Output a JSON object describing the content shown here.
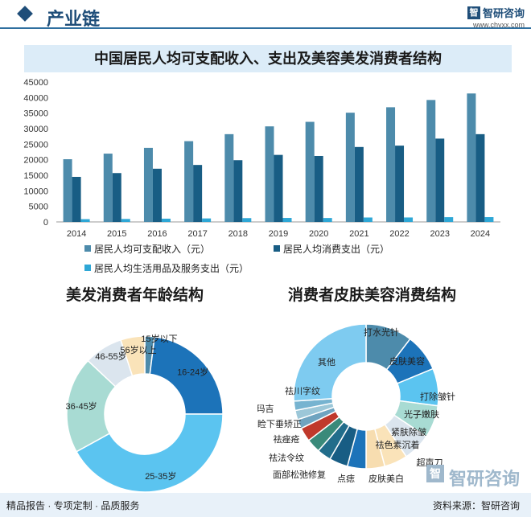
{
  "header": {
    "title": "产业链"
  },
  "brand": {
    "name": "智研咨询",
    "url": "www.chyxx.com"
  },
  "main_title": "中国居民人均可支配收入、支出及美容美发消费者结构",
  "colors": {
    "income": "#4d8bab",
    "consumption": "#185d84",
    "daily": "#2ea7d6",
    "title_bg": "#dcecf8",
    "header": "#1f4e79"
  },
  "chart_data": [
    {
      "type": "bar",
      "categories": [
        "2014",
        "2015",
        "2016",
        "2017",
        "2018",
        "2019",
        "2020",
        "2021",
        "2022",
        "2023",
        "2024"
      ],
      "series": [
        {
          "name": "居民人均可支配收入（元）",
          "values": [
            20167,
            21966,
            23821,
            25974,
            28228,
            30733,
            32189,
            35128,
            36883,
            39218,
            41314
          ]
        },
        {
          "name": "居民人均消费支出（元）",
          "values": [
            14491,
            15712,
            17111,
            18322,
            19853,
            21559,
            21210,
            24100,
            24538,
            26796,
            28227
          ]
        },
        {
          "name": "居民人均生活用品及服务支出（元）",
          "values": [
            890,
            951,
            1044,
            1121,
            1223,
            1281,
            1260,
            1423,
            1432,
            1526,
            1541
          ]
        }
      ],
      "ylim": [
        0,
        45000
      ],
      "yticks": [
        "0",
        "5000",
        "10000",
        "15000",
        "20000",
        "25000",
        "30000",
        "35000",
        "40000",
        "45000"
      ],
      "grid": false,
      "legend": "bottom"
    },
    {
      "type": "pie",
      "title": "美发消费者年龄结构",
      "slices": [
        {
          "label": "15岁以下",
          "value": 2
        },
        {
          "label": "16-24岁",
          "value": 23
        },
        {
          "label": "25-35岁",
          "value": 42
        },
        {
          "label": "36-45岁",
          "value": 20
        },
        {
          "label": "46-55岁",
          "value": 8
        },
        {
          "label": "56岁以上",
          "value": 5
        }
      ],
      "colors": [
        "#4d8bab",
        "#1c73b9",
        "#5bc4f0",
        "#a8dbd3",
        "#dbe5ee",
        "#fae3b9"
      ]
    },
    {
      "type": "pie",
      "title": "消费者皮肤美容消费结构",
      "slices": [
        {
          "label": "打水光针",
          "value": 10
        },
        {
          "label": "皮肤美容",
          "value": 8
        },
        {
          "label": "打除皱针",
          "value": 8
        },
        {
          "label": "光子嫩肤",
          "value": 7
        },
        {
          "label": "紧肤除皱",
          "value": 6
        },
        {
          "label": "祛色素沉着",
          "value": 5
        },
        {
          "label": "超声刀",
          "value": 4
        },
        {
          "label": "皮肤美白",
          "value": 4
        },
        {
          "label": "点痣",
          "value": 4
        },
        {
          "label": "面部松弛修复",
          "value": 3
        },
        {
          "label": "祛法令纹",
          "value": 3
        },
        {
          "label": "祛痤疮",
          "value": 3
        },
        {
          "label": "上睑下垂矫正",
          "value": 2
        },
        {
          "label": "热玛吉",
          "value": 2
        },
        {
          "label": "祛川字纹",
          "value": 2
        },
        {
          "label": "其他",
          "value": 25
        }
      ],
      "colors": [
        "#4d8bab",
        "#1c73b9",
        "#5bc4f0",
        "#a8dbd3",
        "#dbe5ee",
        "#fae3b9",
        "#f7ddb0",
        "#1c73b9",
        "#185d84",
        "#226d8b",
        "#3a8a7a",
        "#c0392b",
        "#6fa4c0",
        "#9cc7d8",
        "#76b3d0",
        "#7ecbf0"
      ]
    }
  ],
  "footer": {
    "left": "精品报告 · 专项定制 · 品质服务",
    "right": "资料来源：智研咨询"
  }
}
